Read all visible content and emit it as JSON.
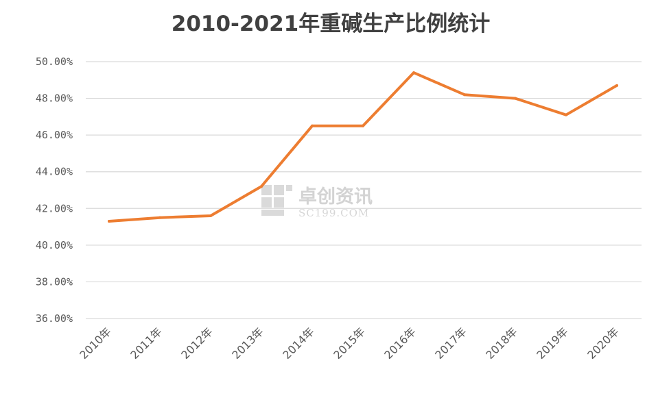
{
  "chart_data": {
    "type": "line",
    "title": "2010-2021年重碱生产比例统计",
    "xlabel": "",
    "ylabel": "",
    "categories": [
      "2010年",
      "2011年",
      "2012年",
      "2013年",
      "2014年",
      "2015年",
      "2016年",
      "2017年",
      "2018年",
      "2019年",
      "2020年"
    ],
    "series": [
      {
        "values": [
          41.3,
          41.5,
          41.6,
          43.2,
          46.5,
          46.5,
          49.4,
          48.2,
          48.0,
          47.1,
          48.7
        ]
      }
    ],
    "y_ticks": [
      "36.00%",
      "38.00%",
      "40.00%",
      "42.00%",
      "44.00%",
      "46.00%",
      "48.00%",
      "50.00%"
    ],
    "ylim": [
      36,
      50
    ],
    "grid": "horizontal",
    "legend": "none",
    "line_color": "#ED7D31",
    "watermark": {
      "text_cn": "卓创资讯",
      "text_en": "SC199.COM"
    }
  }
}
